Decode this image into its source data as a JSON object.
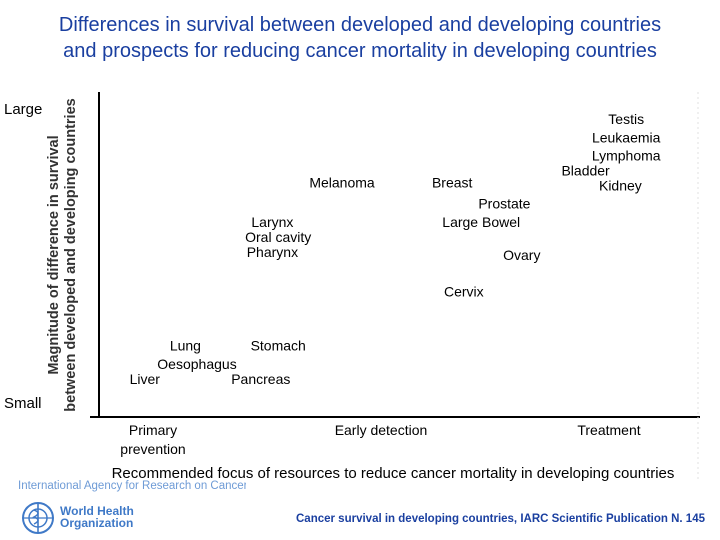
{
  "title_lines": [
    "Differences in survival between developed and developing countries",
    "and prospects for reducing cancer mortality in developing countries"
  ],
  "chart_data": {
    "type": "scatter",
    "title": "Differences in survival between developed and developing countries and prospects for reducing cancer mortality in developing countries",
    "xlabel": "Recommended focus of resources to reduce cancer mortality in developing countries",
    "ylabel_lines": [
      "Magnitude of difference in survival",
      "between developed and developing countries"
    ],
    "y_low_label": "Small",
    "y_high_label": "Large",
    "x_categories": [
      "Primary prevention",
      "Early detection",
      "Treatment"
    ],
    "xlim": [
      0,
      100
    ],
    "ylim": [
      0,
      100
    ],
    "points": [
      {
        "name": "Testis",
        "x": 89,
        "y": 92
      },
      {
        "name": "Leukaemia",
        "x": 89,
        "y": 86
      },
      {
        "name": "Lymphoma",
        "x": 89,
        "y": 80
      },
      {
        "name": "Bladder",
        "x": 82,
        "y": 75
      },
      {
        "name": "Kidney",
        "x": 88,
        "y": 70
      },
      {
        "name": "Melanoma",
        "x": 40,
        "y": 71
      },
      {
        "name": "Breast",
        "x": 59,
        "y": 71
      },
      {
        "name": "Prostate",
        "x": 68,
        "y": 64
      },
      {
        "name": "Large Bowel",
        "x": 64,
        "y": 58
      },
      {
        "name": "Larynx",
        "x": 28,
        "y": 58
      },
      {
        "name": "Oral cavity",
        "x": 29,
        "y": 53
      },
      {
        "name": "Pharynx",
        "x": 28,
        "y": 48
      },
      {
        "name": "Ovary",
        "x": 71,
        "y": 47
      },
      {
        "name": "Cervix",
        "x": 61,
        "y": 35
      },
      {
        "name": "Lung",
        "x": 13,
        "y": 17
      },
      {
        "name": "Stomach",
        "x": 29,
        "y": 17
      },
      {
        "name": "Oesophagus",
        "x": 15,
        "y": 11
      },
      {
        "name": "Pancreas",
        "x": 26,
        "y": 6
      },
      {
        "name": "Liver",
        "x": 6,
        "y": 6
      }
    ]
  },
  "footer": {
    "agency": "International Agency for Research on Cancer",
    "who_lines": [
      "World Health",
      "Organization"
    ],
    "citation": "Cancer survival in developing countries, IARC Scientific Publication N. 145"
  }
}
